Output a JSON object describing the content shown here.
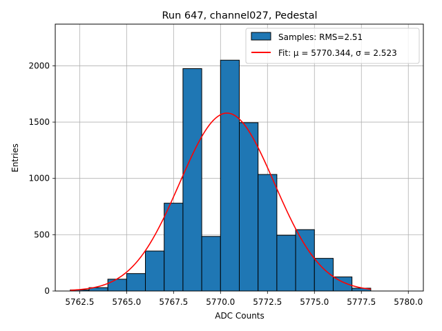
{
  "chart_data": {
    "type": "bar",
    "title": "Run 647, channel027, Pedestal",
    "xlabel": "ADC Counts",
    "ylabel": "Entries",
    "xlim": [
      5761.2,
      5780.8
    ],
    "ylim": [
      0,
      2370
    ],
    "xticks": [
      5762.5,
      5765.0,
      5767.5,
      5770.0,
      5772.5,
      5775.0,
      5777.5,
      5780.0
    ],
    "xtick_labels": [
      "5762.5",
      "5765.0",
      "5767.5",
      "5770.0",
      "5772.5",
      "5775.0",
      "5777.5",
      "5780.0"
    ],
    "yticks": [
      0,
      500,
      1000,
      1500,
      2000
    ],
    "ytick_labels": [
      "0",
      "500",
      "1000",
      "1500",
      "2000"
    ],
    "grid": true,
    "legend_position": "upper right",
    "bin_edges": [
      5762.0,
      5763.0,
      5764.0,
      5765.0,
      5766.0,
      5767.0,
      5768.0,
      5769.0,
      5770.0,
      5771.0,
      5772.0,
      5773.0,
      5774.0,
      5775.0,
      5776.0,
      5777.0,
      5778.0,
      5779.0,
      5780.0
    ],
    "series": [
      {
        "name": "Samples: RMS=2.51",
        "kind": "histogram",
        "color": "#1f77b4",
        "edgecolor": "#000000",
        "values": [
          10,
          30,
          105,
          155,
          355,
          780,
          1975,
          485,
          2050,
          1495,
          1035,
          495,
          545,
          290,
          125,
          25,
          0,
          0
        ]
      },
      {
        "name": "Fit: μ = 5770.344, σ = 2.523",
        "kind": "gaussian",
        "color": "#ff0000",
        "amplitude": 1580,
        "mu": 5770.344,
        "sigma": 2.523,
        "x_range": [
          5762.0,
          5778.0
        ]
      }
    ]
  }
}
